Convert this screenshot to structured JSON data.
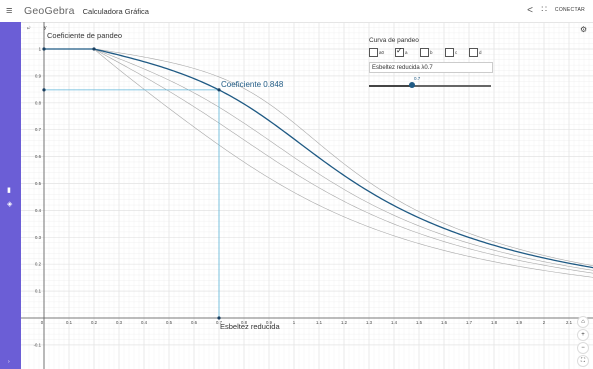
{
  "header": {
    "menu_icon": "menu-icon",
    "brand": "GeoGebra",
    "app_title": "Calculadora Gráfica",
    "share_icon": "share-icon",
    "apps_icon": "apps-grid-icon",
    "signin_label": "CONECTAR"
  },
  "sidebar": {
    "icons": [
      "delete-icon",
      "style-icon"
    ],
    "collapse_icon": "chevron-icon"
  },
  "graph": {
    "y_axis_name": "y",
    "y_axis_title": "Coeficiente de pandeo",
    "x_axis_title": "Esbeltez reducida",
    "point_label": "Coeficiente 0.848",
    "x_ticks": [
      "0",
      "0.1",
      "0.2",
      "0.3",
      "0.4",
      "0.5",
      "0.6",
      "0.7",
      "0.8",
      "0.9",
      "1",
      "1.1",
      "1.2",
      "1.3",
      "1.4",
      "1.5",
      "1.6",
      "1.7",
      "1.8",
      "1.9",
      "2",
      "2.1"
    ],
    "y_ticks": [
      "1",
      "0.9",
      "0.8",
      "0.7",
      "0.6",
      "0.5",
      "0.4",
      "0.3",
      "0.2",
      "0.1",
      "0",
      "-0.1"
    ]
  },
  "panel": {
    "title": "Curva de pandeo",
    "checkboxes": [
      {
        "label": "a0",
        "checked": false
      },
      {
        "label": "a",
        "checked": true
      },
      {
        "label": "b",
        "checked": false
      },
      {
        "label": "c",
        "checked": false
      },
      {
        "label": "d",
        "checked": false
      }
    ],
    "input_value": "Esbeltez reducida λ0.7",
    "slider_value": "0.7",
    "slider_min": 0,
    "slider_max": 2,
    "slider_level": 0.7
  },
  "colors": {
    "sidebar": "#6b5ed6",
    "main_curve": "#1f5a84",
    "guide_line": "#5fb6d9",
    "grid": "#e4e4e4"
  },
  "chart_data": {
    "type": "line",
    "xlabel": "Esbeltez reducida",
    "ylabel": "Coeficiente de pandeo",
    "xlim": [
      0,
      2.2
    ],
    "ylim": [
      -0.1,
      1.02
    ],
    "grid": true,
    "highlight_point": {
      "x": 0.7,
      "y": 0.848,
      "label": "Coeficiente 0.848"
    },
    "main_alpha": 0.21,
    "series_alpha": [
      0.13,
      0.21,
      0.34,
      0.49,
      0.76
    ]
  }
}
